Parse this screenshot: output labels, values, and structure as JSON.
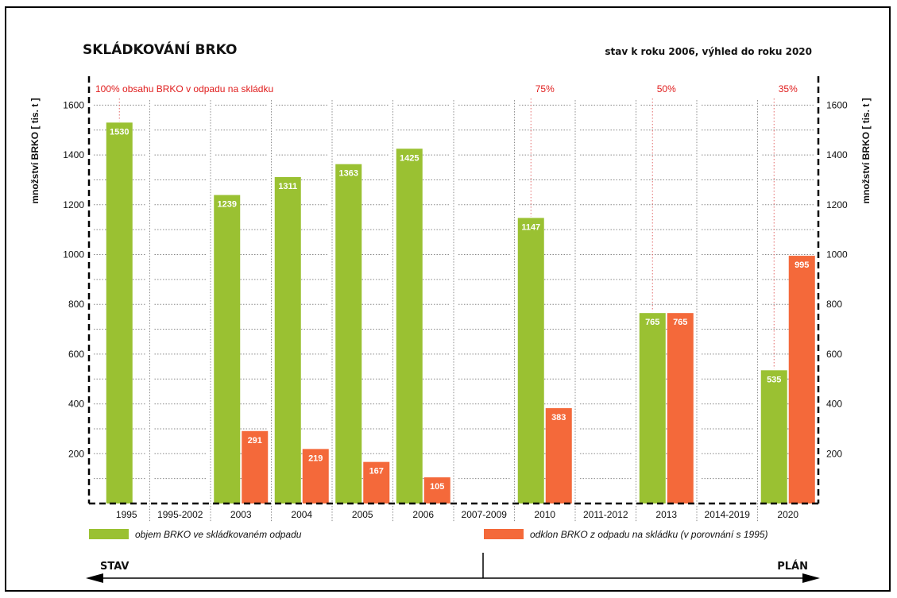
{
  "colors": {
    "green": "#9ac132",
    "orange": "#f4693a",
    "red_text": "#e01d1d",
    "grid": "#888888"
  },
  "chart_data": {
    "type": "bar",
    "title": "SKLÁDKOVÁNÍ BRKO",
    "subtitle": "stav k roku 2006, výhled do roku 2020",
    "ylabel": "množství BRKO [ tis. t ]",
    "ylabel_right": "množství BRKO [ tis. t ]",
    "ylim": [
      0,
      1700
    ],
    "yticks": [
      200,
      400,
      600,
      800,
      1000,
      1200,
      1400,
      1600
    ],
    "categories": [
      "1995",
      "1995-2002",
      "2003",
      "2004",
      "2005",
      "2006",
      "2007-2009",
      "2010",
      "2011-2012",
      "2013",
      "2014-2019",
      "2020"
    ],
    "series": [
      {
        "name": "objem BRKO ve skládkovaném odpadu",
        "color": "#9ac132",
        "values": [
          1530,
          null,
          1239,
          1311,
          1363,
          1425,
          null,
          1147,
          null,
          765,
          null,
          535
        ]
      },
      {
        "name": "odklon BRKO z odpadu na skládku (v porovnání s 1995)",
        "color": "#f4693a",
        "values": [
          null,
          null,
          291,
          219,
          167,
          105,
          null,
          383,
          null,
          765,
          null,
          995
        ]
      }
    ],
    "annotations": [
      {
        "category": "1995",
        "text": "100% obsahu BRKO v odpadu na skládku"
      },
      {
        "category": "2010",
        "text": "75%"
      },
      {
        "category": "2013",
        "text": "50%"
      },
      {
        "category": "2020",
        "text": "35%"
      }
    ],
    "grid": true,
    "legend_position": "bottom",
    "timeline": {
      "left_label": "STAV",
      "right_label": "PLÁN"
    }
  }
}
